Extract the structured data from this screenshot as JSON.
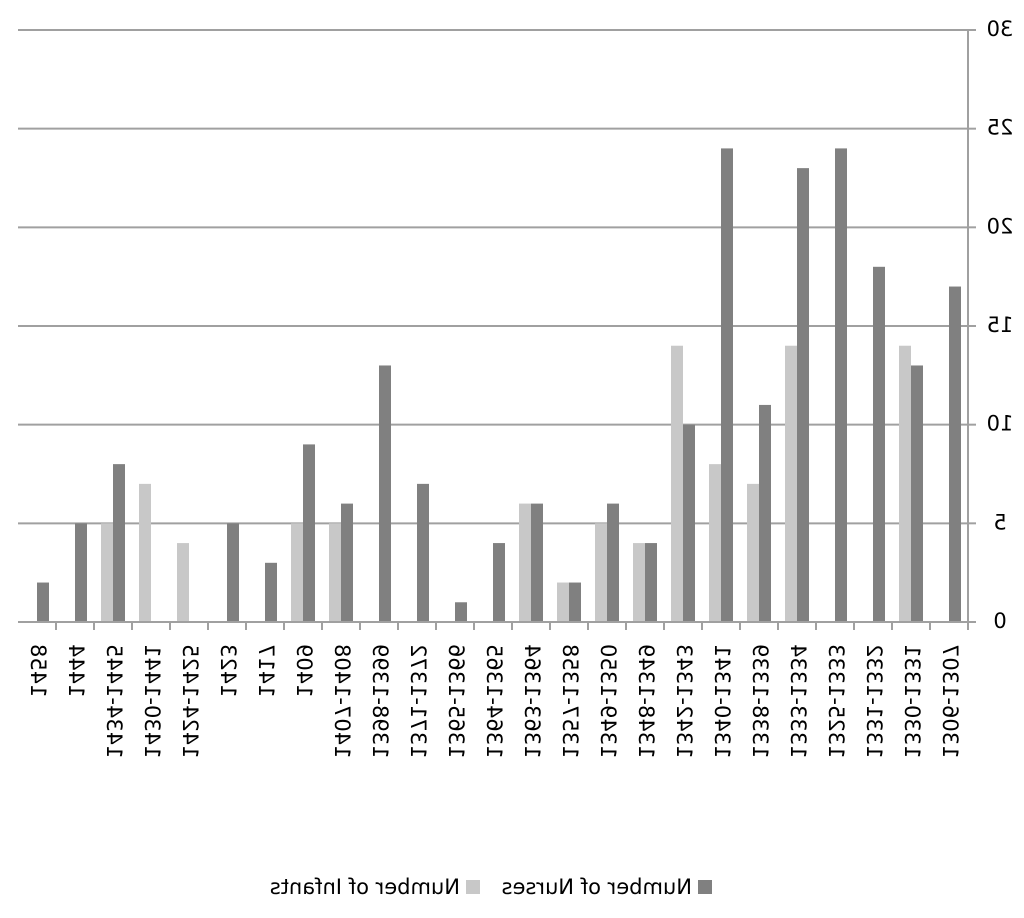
{
  "chart_data": {
    "type": "bar",
    "categories": [
      "1306-1307",
      "1330-1331",
      "1331-1332",
      "1325-1333",
      "1333-1334",
      "1338-1339",
      "1340-1341",
      "1342-1343",
      "1348-1349",
      "1349-1350",
      "1357-1358",
      "1363-1364",
      "1364-1365",
      "1365-1366",
      "1371-1372",
      "1398-1399",
      "1407-1408",
      "1409",
      "1417",
      "1423",
      "1424-1425",
      "1430-1441",
      "1434-1445",
      "1444",
      "1458"
    ],
    "series": [
      {
        "name": "Number of Nurses",
        "color": "#808080",
        "values": [
          17,
          13,
          18,
          24,
          23,
          11,
          24,
          10,
          4,
          6,
          2,
          6,
          4,
          1,
          7,
          13,
          6,
          9,
          3,
          5,
          0,
          0,
          8,
          5,
          2
        ]
      },
      {
        "name": "Number of Infants",
        "color": "#c8c8c8",
        "values": [
          0,
          14,
          0,
          0,
          14,
          7,
          8,
          14,
          4,
          5,
          2,
          6,
          0,
          0,
          0,
          0,
          5,
          5,
          0,
          0,
          4,
          7,
          5,
          0,
          0
        ]
      }
    ],
    "ylim": [
      0,
      30
    ],
    "yticks": [
      0,
      5,
      10,
      15,
      20,
      25,
      30
    ],
    "grid": true,
    "legend": "bottom"
  }
}
